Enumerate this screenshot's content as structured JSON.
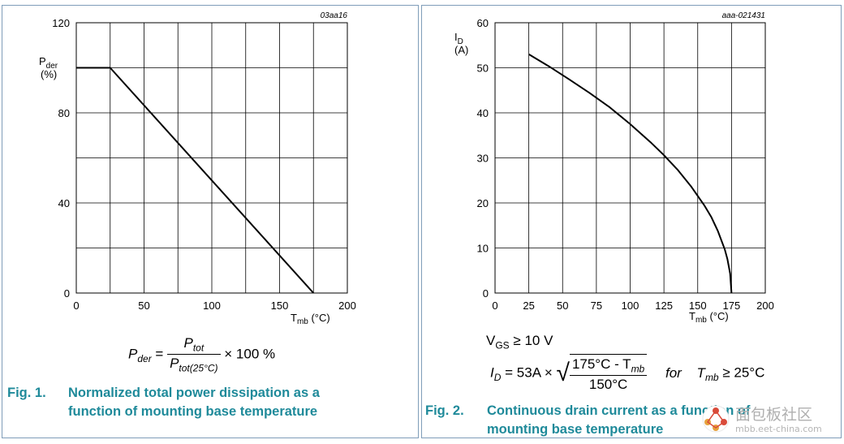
{
  "chart_data": [
    {
      "type": "line",
      "code": "03aa16",
      "title": "Normalized total power dissipation as a function of mounting base temperature",
      "fig_label": "Fig. 1.",
      "ylabel_main": "P",
      "ylabel_sub": "der",
      "ylabel_unit": "(%)",
      "xlabel_main": "T",
      "xlabel_sub": "mb",
      "xlabel_unit": "(°C)",
      "xlim": [
        0,
        200
      ],
      "ylim": [
        0,
        120
      ],
      "xticks": [
        0,
        50,
        100,
        150,
        200
      ],
      "xtick_labels": [
        "0",
        "50",
        "100",
        "150",
        "200"
      ],
      "yticks": [
        0,
        40,
        80,
        120
      ],
      "ytick_labels": [
        "0",
        "40",
        "80",
        "120"
      ],
      "grid": {
        "x_step": 25,
        "y_step": 20
      },
      "series": [
        {
          "x": [
            0,
            25,
            175
          ],
          "y": [
            100,
            100,
            0
          ]
        }
      ]
    },
    {
      "type": "line",
      "code": "aaa-021431",
      "title": "Continuous drain current as a function of mounting base temperature",
      "fig_label": "Fig. 2.",
      "ylabel_main": "I",
      "ylabel_sub": "D",
      "ylabel_unit": "(A)",
      "xlabel_main": "T",
      "xlabel_sub": "mb",
      "xlabel_unit": "(°C)",
      "xlim": [
        0,
        200
      ],
      "ylim": [
        0,
        60
      ],
      "xticks": [
        0,
        25,
        50,
        75,
        100,
        125,
        150,
        175,
        200
      ],
      "xtick_labels": [
        "0",
        "25",
        "50",
        "75",
        "100",
        "125",
        "150",
        "175",
        "200"
      ],
      "yticks": [
        0,
        10,
        20,
        30,
        40,
        50,
        60
      ],
      "ytick_labels": [
        "0",
        "10",
        "20",
        "30",
        "40",
        "50",
        "60"
      ],
      "grid": {
        "x_step": 25,
        "y_step": 10
      },
      "series": [
        {
          "x": [
            25,
            40,
            55,
            70,
            85,
            100,
            115,
            125,
            135,
            145,
            155,
            160,
            165,
            170,
            172,
            174,
            175
          ],
          "y": [
            53.0,
            50.3,
            47.4,
            44.4,
            41.2,
            37.5,
            33.5,
            30.6,
            27.4,
            23.7,
            19.4,
            16.9,
            13.7,
            9.7,
            7.5,
            4.3,
            0
          ]
        }
      ]
    }
  ],
  "fig1": {
    "fig_num": "Fig. 1.",
    "caption_line1": "Normalized total power dissipation as a",
    "caption_line2": "function of mounting base temperature",
    "formula": {
      "lhs": "P",
      "lhs_sub": "der",
      "eq": " = ",
      "num": "P",
      "num_sub": "tot",
      "den": "P",
      "den_sub": "tot(25°C)",
      "tail": " × 100 %"
    }
  },
  "fig2": {
    "fig_num": "Fig. 2.",
    "caption_line1": "Continuous drain current as a function of",
    "caption_line2": "mounting base temperature",
    "condition_main": "V",
    "condition_sub": "GS",
    "condition_tail": " ≥ 10 V",
    "formula": {
      "lhs": "I",
      "lhs_sub": "D",
      "eq": " = 53A × ",
      "num": "175°C - T",
      "num_sub": "mb",
      "den": "150°C",
      "for_text": "for",
      "cond_main": "T",
      "cond_sub": "mb",
      "cond_tail": " ≥ 25°C"
    }
  },
  "watermark": {
    "line1": "面包板社区",
    "line2": "mbb.eet-china.com"
  }
}
